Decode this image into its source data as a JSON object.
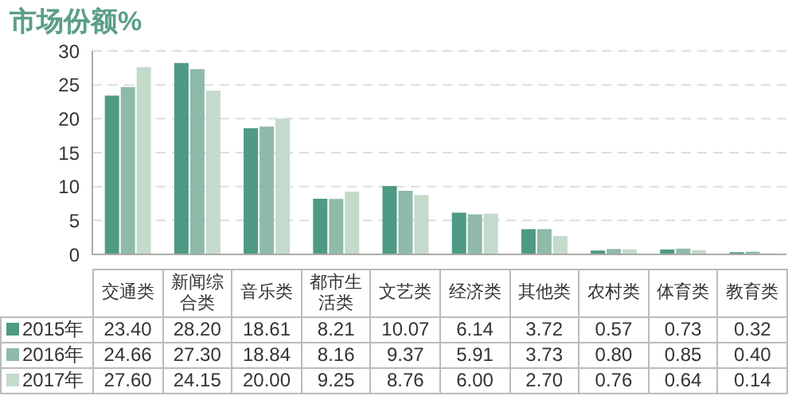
{
  "chart_data": {
    "type": "bar",
    "title": "市场份额%",
    "categories": [
      "交通类",
      "新闻综合类",
      "音乐类",
      "都市生活类",
      "文艺类",
      "经济类",
      "其他类",
      "农村类",
      "体育类",
      "教育类"
    ],
    "series": [
      {
        "name": "2015年",
        "color": "#4e9a84",
        "values": [
          23.4,
          28.2,
          18.61,
          8.21,
          10.07,
          6.14,
          3.72,
          0.57,
          0.73,
          0.32
        ],
        "value_labels": [
          "23.40",
          "28.20",
          "18.61",
          "8.21",
          "10.07",
          "6.14",
          "3.72",
          "0.57",
          "0.73",
          "0.32"
        ]
      },
      {
        "name": "2016年",
        "color": "#8fbaa9",
        "values": [
          24.66,
          27.3,
          18.84,
          8.16,
          9.37,
          5.91,
          3.73,
          0.8,
          0.85,
          0.4
        ],
        "value_labels": [
          "24.66",
          "27.30",
          "18.84",
          "8.16",
          "9.37",
          "5.91",
          "3.73",
          "0.80",
          "0.85",
          "0.40"
        ]
      },
      {
        "name": "2017年",
        "color": "#c4dacb",
        "values": [
          27.6,
          24.15,
          20.0,
          9.25,
          8.76,
          6.0,
          2.7,
          0.76,
          0.64,
          0.14
        ],
        "value_labels": [
          "27.60",
          "24.15",
          "20.00",
          "9.25",
          "8.76",
          "6.00",
          "2.70",
          "0.76",
          "0.64",
          "0.14"
        ]
      }
    ],
    "ylim": [
      0,
      30
    ],
    "yticks": [
      0,
      5,
      10,
      15,
      20,
      25,
      30
    ],
    "grid": "y",
    "legend": "bottom"
  }
}
